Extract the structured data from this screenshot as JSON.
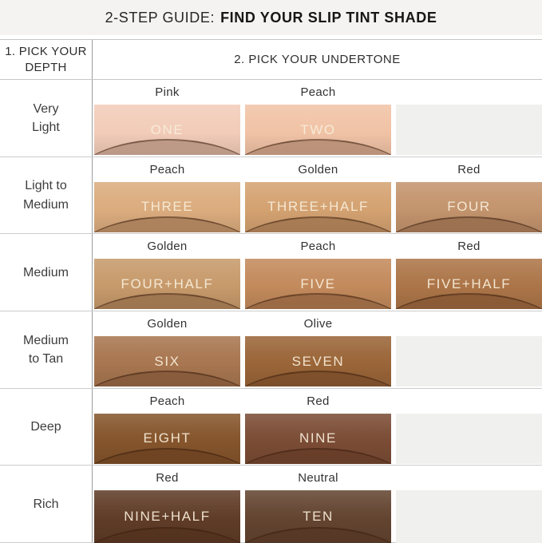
{
  "title": {
    "prefix": "2-STEP GUIDE:",
    "bold": "FIND YOUR SLIP TINT SHADE"
  },
  "header": {
    "depth": "1. PICK YOUR\nDEPTH",
    "undertone": "2. PICK YOUR UNDERTONE"
  },
  "colors": {
    "title_band_bg": "#f5f3f1",
    "table_border": "#c6c6c6",
    "empty_cell": "#f0f0ee",
    "shade_label_text": "#f8edda"
  },
  "rows": [
    {
      "depth": "Very\nLight",
      "cells": [
        {
          "undertone": "Pink",
          "shade": "ONE",
          "color": "#f2ccb9"
        },
        {
          "undertone": "Peach",
          "shade": "TWO",
          "color": "#f1c3a6"
        }
      ]
    },
    {
      "depth": "Light to\nMedium",
      "cells": [
        {
          "undertone": "Peach",
          "shade": "THREE",
          "color": "#dbac7e"
        },
        {
          "undertone": "Golden",
          "shade": "THREE+HALF",
          "color": "#d4a271"
        },
        {
          "undertone": "Red",
          "shade": "FOUR",
          "color": "#c3946d"
        }
      ]
    },
    {
      "depth": "Medium",
      "cells": [
        {
          "undertone": "Golden",
          "shade": "FOUR+HALF",
          "color": "#c79a6b"
        },
        {
          "undertone": "Peach",
          "shade": "FIVE",
          "color": "#c38a5c"
        },
        {
          "undertone": "Red",
          "shade": "FIVE+HALF",
          "color": "#ac7548"
        }
      ]
    },
    {
      "depth": "Medium\nto Tan",
      "cells": [
        {
          "undertone": "Golden",
          "shade": "SIX",
          "color": "#a87650"
        },
        {
          "undertone": "Olive",
          "shade": "SEVEN",
          "color": "#9a6538"
        }
      ]
    },
    {
      "depth": "Deep",
      "cells": [
        {
          "undertone": "Peach",
          "shade": "EIGHT",
          "color": "#85552c"
        },
        {
          "undertone": "Red",
          "shade": "NINE",
          "color": "#7b4c35"
        }
      ]
    },
    {
      "depth": "Rich",
      "cells": [
        {
          "undertone": "Red",
          "shade": "NINE+HALF",
          "color": "#5f3c27"
        },
        {
          "undertone": "Neutral",
          "shade": "TEN",
          "color": "#634430"
        }
      ]
    }
  ]
}
